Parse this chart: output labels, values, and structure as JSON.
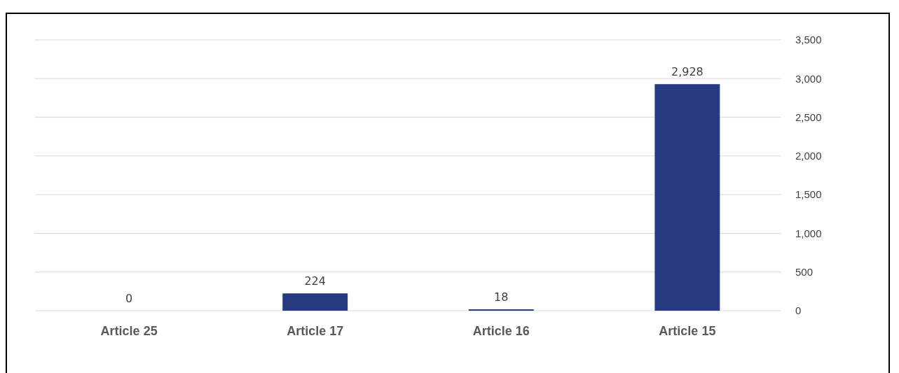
{
  "chart_data": {
    "type": "bar",
    "categories": [
      "Article 25",
      "Article 17",
      "Article 16",
      "Article 15"
    ],
    "values": [
      0,
      224,
      18,
      2928
    ],
    "color": "#283a80",
    "ylim": [
      0,
      3500
    ],
    "yticks": [
      {
        "value": 0,
        "label": "0"
      },
      {
        "value": 500,
        "label": "500"
      },
      {
        "value": 1000,
        "label": "1,000"
      },
      {
        "value": 1500,
        "label": "1,500"
      },
      {
        "value": 2000,
        "label": "2,000"
      },
      {
        "value": 2500,
        "label": "2,500"
      },
      {
        "value": 3000,
        "label": "3,000"
      },
      {
        "value": 3500,
        "label": "3,500"
      }
    ],
    "grid": "y",
    "value_labels": [
      "0",
      "224",
      "18",
      "2,928"
    ]
  }
}
